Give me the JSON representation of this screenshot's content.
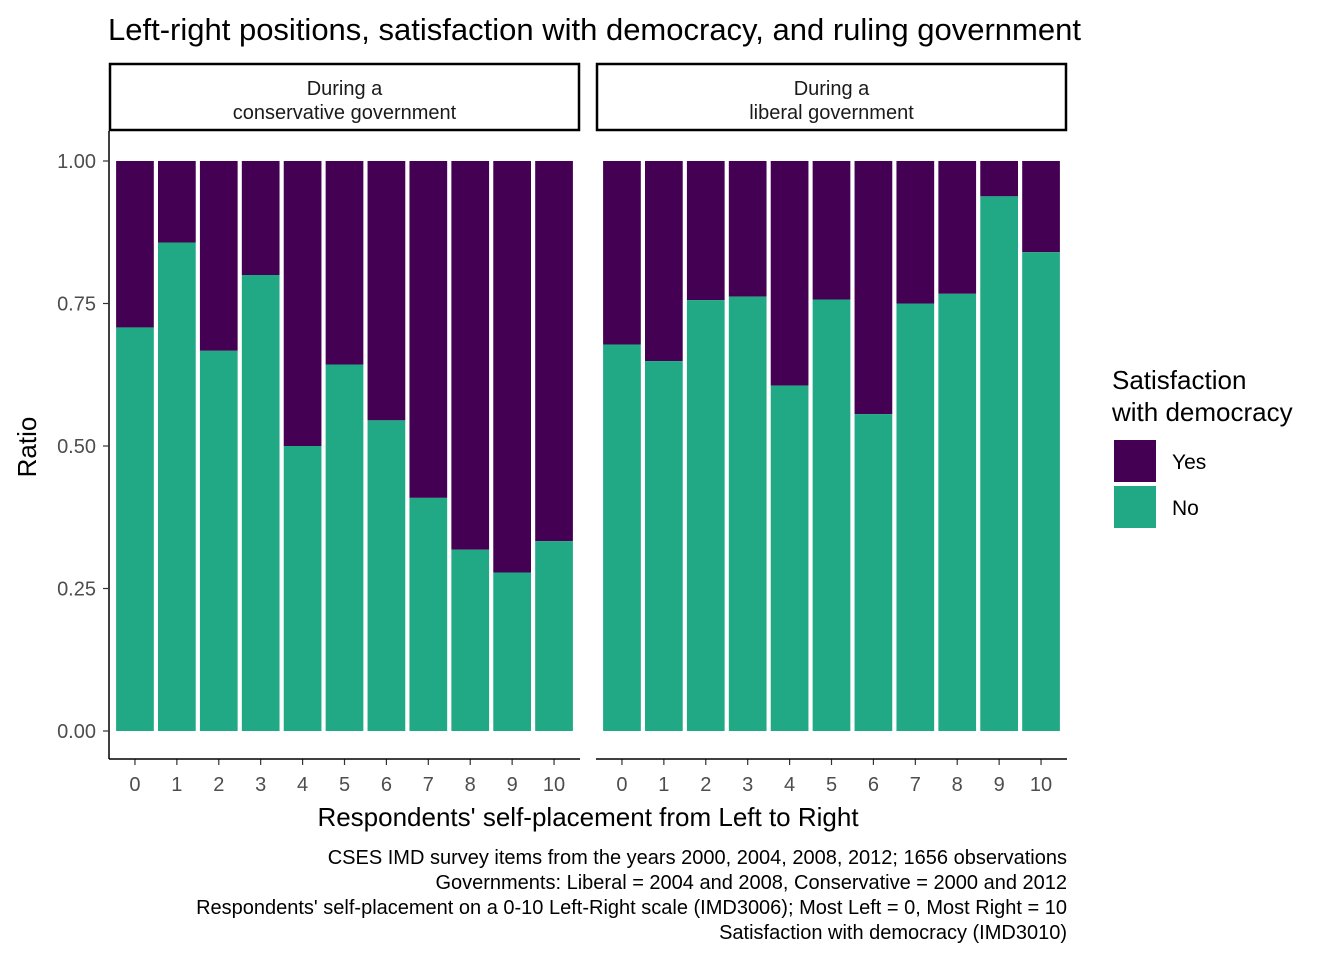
{
  "chart_data": {
    "type": "bar",
    "stacked": true,
    "title": "Left-right positions, satisfaction with democracy, and ruling government",
    "xlabel": "Respondents' self-placement from Left to Right",
    "ylabel": "Ratio",
    "ylim": [
      0,
      1
    ],
    "y_ticks": [
      "0.00",
      "0.25",
      "0.50",
      "0.75",
      "1.00"
    ],
    "y_tick_values": [
      0,
      0.25,
      0.5,
      0.75,
      1.0
    ],
    "categories": [
      "0",
      "1",
      "2",
      "3",
      "4",
      "5",
      "6",
      "7",
      "8",
      "9",
      "10"
    ],
    "panels": [
      {
        "strip_lines": [
          "During a",
          "conservative government"
        ],
        "series": [
          {
            "name": "No",
            "values": [
              0.708,
              0.857,
              0.667,
              0.8,
              0.5,
              0.643,
              0.545,
              0.409,
              0.318,
              0.278,
              0.333
            ]
          },
          {
            "name": "Yes",
            "values": [
              0.292,
              0.143,
              0.333,
              0.2,
              0.5,
              0.357,
              0.455,
              0.591,
              0.682,
              0.722,
              0.667
            ]
          }
        ]
      },
      {
        "strip_lines": [
          "During a",
          "liberal government"
        ],
        "series": [
          {
            "name": "No",
            "values": [
              0.678,
              0.649,
              0.756,
              0.762,
              0.606,
              0.757,
              0.556,
              0.75,
              0.767,
              0.938,
              0.84
            ]
          },
          {
            "name": "Yes",
            "values": [
              0.322,
              0.351,
              0.244,
              0.238,
              0.394,
              0.243,
              0.444,
              0.25,
              0.233,
              0.062,
              0.16
            ]
          }
        ]
      }
    ],
    "legend": {
      "title_lines": [
        "Satisfaction",
        "with democracy"
      ],
      "items": [
        {
          "label": "Yes",
          "color": "#440154"
        },
        {
          "label": "No",
          "color": "#21A885"
        }
      ],
      "position": "right"
    },
    "colors": {
      "Yes": "#440154",
      "No": "#21A885"
    },
    "caption_lines": [
      "CSES IMD survey items from the years 2000, 2004, 2008, 2012; 1656 observations",
      "Governments: Liberal = 2004 and 2008, Conservative = 2000 and 2012",
      "Respondents' self-placement on a 0-10 Left-Right scale (IMD3006); Most Left = 0, Most Right = 10",
      "Satisfaction with democracy (IMD3010)"
    ],
    "grid": false
  }
}
